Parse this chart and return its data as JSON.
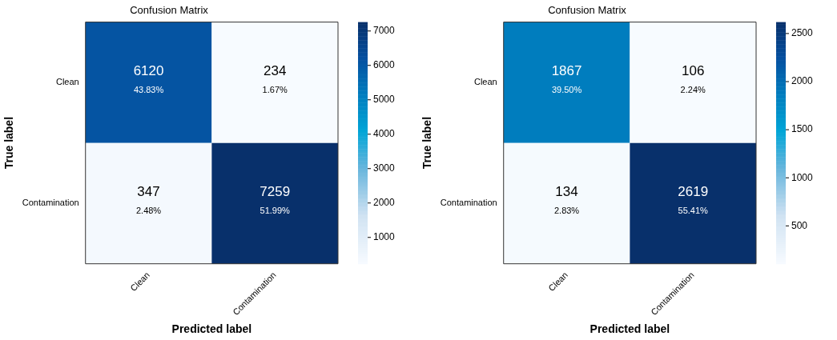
{
  "chart_data": [
    {
      "type": "heatmap",
      "title": "Confusion Matrix",
      "xlabel": "Predicted label",
      "ylabel": "True label",
      "categories": [
        "Clean",
        "Contamination"
      ],
      "y_categories": [
        "Clean",
        "Contamination"
      ],
      "cells": [
        [
          6120,
          234
        ],
        [
          347,
          7259
        ]
      ],
      "cell_labels": [
        [
          "6120\n43.83%",
          "234\n1.67%"
        ],
        [
          "347\n2.48%",
          "7259\n51.99%"
        ]
      ],
      "clim": [
        234,
        7259
      ],
      "cticks": [
        1000,
        2000,
        3000,
        4000,
        5000,
        6000,
        7000
      ]
    },
    {
      "type": "heatmap",
      "title": "Confusion Matrix",
      "xlabel": "Predicted label",
      "ylabel": "True label",
      "categories": [
        "Clean",
        "Contamination"
      ],
      "y_categories": [
        "Clean",
        "Contamination"
      ],
      "cells": [
        [
          1867,
          106
        ],
        [
          134,
          2619
        ]
      ],
      "cell_labels": [
        [
          "1867\n39.50%",
          "106\n2.24%"
        ],
        [
          "134\n2.83%",
          "2619\n55.41%"
        ]
      ],
      "clim": [
        106,
        2619
      ],
      "cticks": [
        500,
        1000,
        1500,
        2000,
        2500
      ]
    }
  ]
}
